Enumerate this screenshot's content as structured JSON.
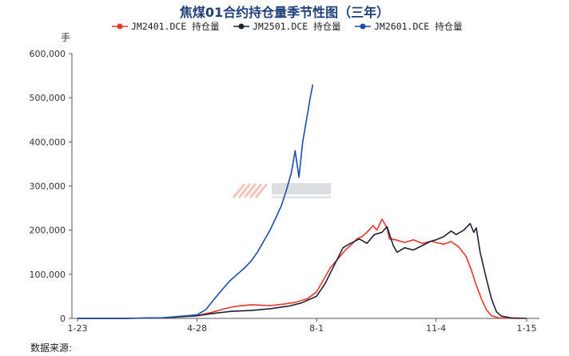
{
  "chart_data": {
    "type": "line",
    "title": "焦煤01合约持仓量季节性图（三年）",
    "ylabel": "手",
    "ylim": [
      0,
      600000
    ],
    "y_ticks": [
      0,
      100000,
      200000,
      300000,
      400000,
      500000,
      600000
    ],
    "y_tick_labels": [
      "0",
      "100,000",
      "200,000",
      "300,000",
      "400,000",
      "500,000",
      "600,000"
    ],
    "x_tick_labels": [
      "1-23",
      "4-28",
      "8-1",
      "11-4",
      "1-15"
    ],
    "x_range": [
      "1-23",
      "1-15"
    ],
    "legend_position": "top",
    "grid": false,
    "series": [
      {
        "name": "JM2401.DCE  持仓量",
        "color": "#e8362b",
        "points": [
          [
            "1-23",
            0
          ],
          [
            "2-28",
            0
          ],
          [
            "4-1",
            1000
          ],
          [
            "4-28",
            6000
          ],
          [
            "5-10",
            14000
          ],
          [
            "5-20",
            22000
          ],
          [
            "5-28",
            27000
          ],
          [
            "6-10",
            31000
          ],
          [
            "6-25",
            29000
          ],
          [
            "7-5",
            32000
          ],
          [
            "7-15",
            36000
          ],
          [
            "7-25",
            45000
          ],
          [
            "8-1",
            60000
          ],
          [
            "8-6",
            85000
          ],
          [
            "8-12",
            115000
          ],
          [
            "8-18",
            135000
          ],
          [
            "8-24",
            155000
          ],
          [
            "8-28",
            165000
          ],
          [
            "9-2",
            180000
          ],
          [
            "9-6",
            185000
          ],
          [
            "9-10",
            195000
          ],
          [
            "9-15",
            210000
          ],
          [
            "9-18",
            200000
          ],
          [
            "9-22",
            225000
          ],
          [
            "9-26",
            205000
          ],
          [
            "9-28",
            180000
          ],
          [
            "10-3",
            178000
          ],
          [
            "10-10",
            172000
          ],
          [
            "10-17",
            178000
          ],
          [
            "10-24",
            170000
          ],
          [
            "10-31",
            175000
          ],
          [
            "11-4",
            172000
          ],
          [
            "11-10",
            168000
          ],
          [
            "11-16",
            174000
          ],
          [
            "11-22",
            162000
          ],
          [
            "11-28",
            140000
          ],
          [
            "12-2",
            110000
          ],
          [
            "12-6",
            75000
          ],
          [
            "12-10",
            45000
          ],
          [
            "12-14",
            20000
          ],
          [
            "12-18",
            6000
          ],
          [
            "12-24",
            1000
          ],
          [
            "1-10",
            0
          ]
        ]
      },
      {
        "name": "JM2501.DCE  持仓量",
        "color": "#1e2235",
        "points": [
          [
            "1-23",
            0
          ],
          [
            "2-28",
            0
          ],
          [
            "4-1",
            1500
          ],
          [
            "4-28",
            6000
          ],
          [
            "5-10",
            11000
          ],
          [
            "5-25",
            16000
          ],
          [
            "6-10",
            18000
          ],
          [
            "6-25",
            22000
          ],
          [
            "7-10",
            28000
          ],
          [
            "7-20",
            35000
          ],
          [
            "8-1",
            50000
          ],
          [
            "8-8",
            80000
          ],
          [
            "8-15",
            120000
          ],
          [
            "8-22",
            160000
          ],
          [
            "8-28",
            170000
          ],
          [
            "9-4",
            180000
          ],
          [
            "9-10",
            170000
          ],
          [
            "9-16",
            190000
          ],
          [
            "9-22",
            195000
          ],
          [
            "9-26",
            208000
          ],
          [
            "10-1",
            165000
          ],
          [
            "10-4",
            150000
          ],
          [
            "10-10",
            160000
          ],
          [
            "10-17",
            155000
          ],
          [
            "10-24",
            165000
          ],
          [
            "10-31",
            175000
          ],
          [
            "11-4",
            178000
          ],
          [
            "11-10",
            185000
          ],
          [
            "11-16",
            198000
          ],
          [
            "11-20",
            190000
          ],
          [
            "11-26",
            200000
          ],
          [
            "12-1",
            215000
          ],
          [
            "12-4",
            195000
          ],
          [
            "12-6",
            205000
          ],
          [
            "12-9",
            150000
          ],
          [
            "12-14",
            90000
          ],
          [
            "12-18",
            45000
          ],
          [
            "12-22",
            15000
          ],
          [
            "12-26",
            5000
          ],
          [
            "1-3",
            1000
          ],
          [
            "1-15",
            0
          ]
        ]
      },
      {
        "name": "JM2601.DCE  持仓量",
        "color": "#1a4fa6",
        "points": [
          [
            "1-23",
            0
          ],
          [
            "2-28",
            0
          ],
          [
            "4-1",
            1500
          ],
          [
            "4-28",
            8000
          ],
          [
            "5-5",
            20000
          ],
          [
            "5-12",
            45000
          ],
          [
            "5-18",
            65000
          ],
          [
            "5-24",
            85000
          ],
          [
            "5-30",
            100000
          ],
          [
            "6-5",
            115000
          ],
          [
            "6-10",
            130000
          ],
          [
            "6-15",
            150000
          ],
          [
            "6-20",
            175000
          ],
          [
            "6-25",
            200000
          ],
          [
            "6-30",
            230000
          ],
          [
            "7-4",
            255000
          ],
          [
            "7-8",
            290000
          ],
          [
            "7-12",
            330000
          ],
          [
            "7-15",
            380000
          ],
          [
            "7-18",
            320000
          ],
          [
            "7-21",
            400000
          ],
          [
            "7-24",
            450000
          ],
          [
            "7-27",
            500000
          ],
          [
            "7-29",
            530000
          ]
        ]
      }
    ]
  },
  "source_label": "数据来源:"
}
